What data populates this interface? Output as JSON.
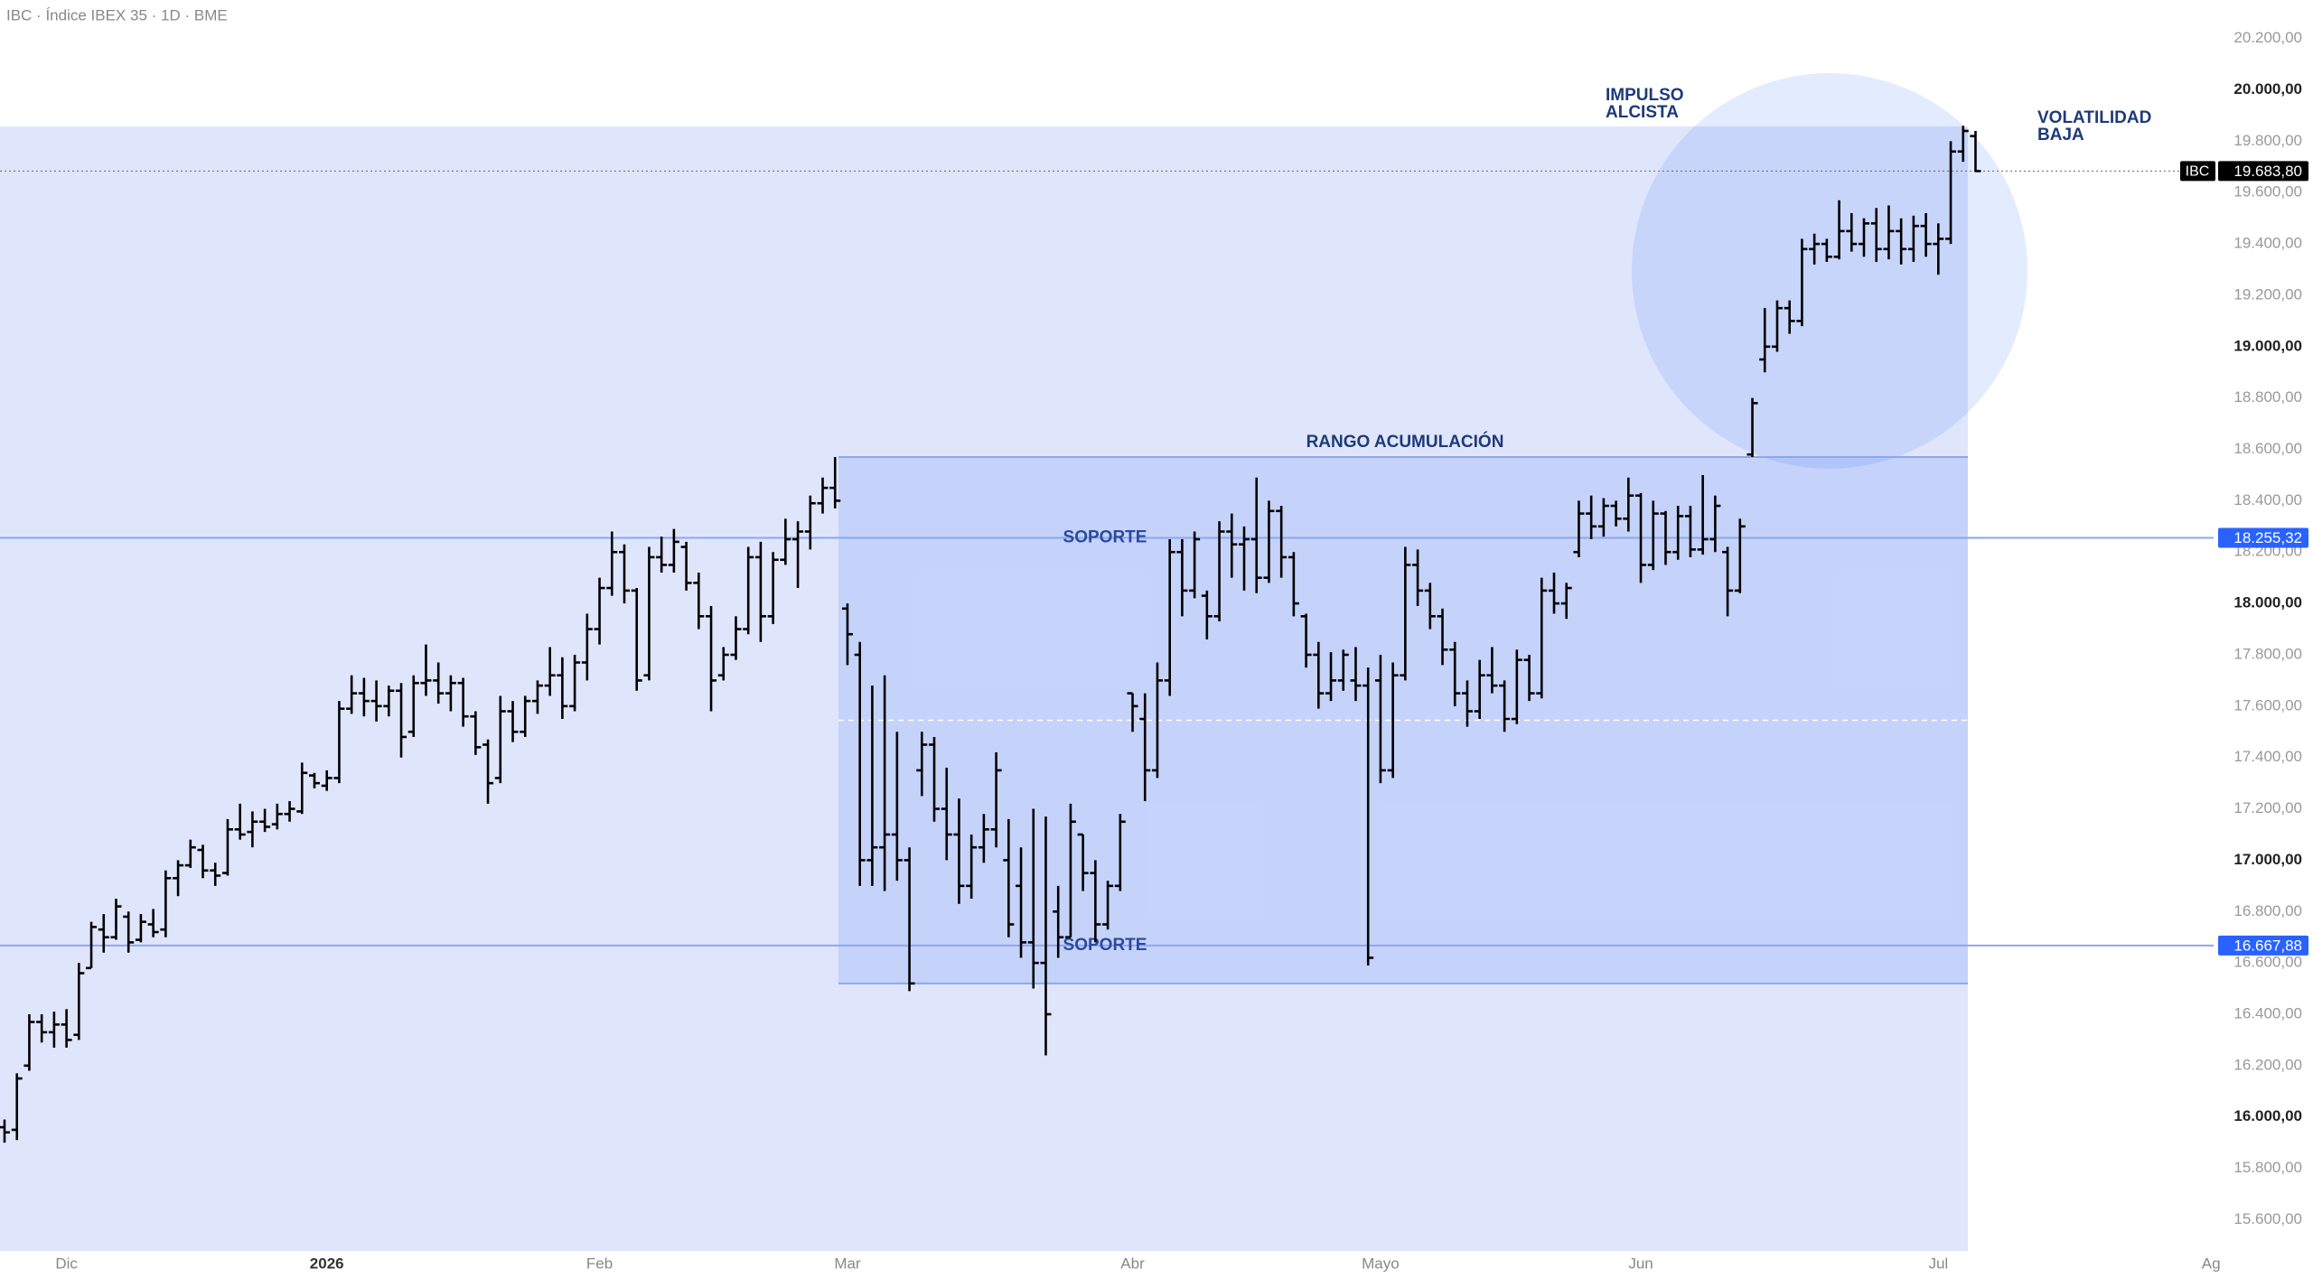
{
  "chart_data": {
    "type": "ohlc",
    "title": "IBC · Índice IBEX 35 · 1D · BME",
    "categories": [
      null,
      null,
      null,
      null,
      null,
      "Dic",
      null,
      null,
      null,
      null,
      null,
      null,
      null,
      null,
      null,
      null,
      null,
      null,
      null,
      null,
      null,
      null,
      null,
      null,
      null,
      null,
      "2026",
      null,
      null,
      null,
      null,
      null,
      null,
      null,
      null,
      null,
      null,
      null,
      null,
      null,
      null,
      null,
      null,
      null,
      null,
      null,
      null,
      null,
      "Feb",
      null,
      null,
      null,
      null,
      null,
      null,
      null,
      null,
      null,
      null,
      null,
      null,
      null,
      null,
      null,
      null,
      null,
      null,
      null,
      "Mar",
      null,
      null,
      null,
      null,
      null,
      null,
      null,
      null,
      null,
      null,
      null,
      null,
      null,
      null,
      null,
      null,
      null,
      null,
      null,
      null,
      null,
      null,
      "Abr",
      null,
      null,
      null,
      null,
      null,
      null,
      null,
      null,
      null,
      null,
      null,
      null,
      null,
      null,
      null,
      null,
      null,
      null,
      null,
      "Mayo",
      null,
      null,
      null,
      null,
      null,
      null,
      null,
      null,
      null,
      null,
      null,
      null,
      null,
      null,
      null,
      null,
      null,
      null,
      null,
      null,
      "Jun",
      null,
      null,
      null,
      null,
      null,
      null,
      null,
      null,
      null,
      null,
      null,
      null,
      null,
      null,
      null,
      null,
      null,
      null,
      null,
      null,
      null,
      null,
      null,
      "Jul",
      null,
      null,
      null,
      null,
      null,
      null,
      null,
      null,
      null,
      null,
      null,
      null,
      null,
      null,
      null,
      null,
      null,
      null,
      null,
      null,
      null,
      "Ag"
    ],
    "series": [
      {
        "name": "IBC",
        "color": "#000000",
        "open": [
          15960,
          15950,
          16200,
          16370,
          16330,
          16360,
          16320,
          16580,
          16730,
          16700,
          16780,
          16690,
          16750,
          16730,
          16930,
          16980,
          17040,
          16960,
          16950,
          17120,
          17110,
          17150,
          17140,
          17180,
          17190,
          17330,
          17290,
          17320,
          17590,
          17650,
          17620,
          17600,
          17660,
          17500,
          17690,
          17700,
          17650,
          17690,
          17560,
          17450,
          17320,
          17580,
          17500,
          17620,
          17680,
          17720,
          17600,
          17770,
          17900,
          18060,
          18200,
          18050,
          17720,
          18180,
          18150,
          18220,
          18080,
          17950,
          17720,
          17800,
          17900,
          18180,
          17950,
          18170,
          18250,
          18280,
          18390,
          18450,
          17980,
          17800,
          17000,
          17050,
          17100,
          17000,
          17350,
          17450,
          17200,
          17100,
          16900,
          17050,
          17120,
          17000,
          16900,
          16680,
          16600,
          16800,
          16700,
          17100,
          16950,
          16750,
          16900,
          17650,
          17550,
          17350,
          17700,
          18200,
          18050,
          18030,
          17950,
          18280,
          18230,
          18250,
          18100,
          18360,
          18180,
          17950,
          17800,
          17650,
          17700,
          17700,
          17680,
          17700,
          17350,
          17720,
          18150,
          18050,
          17950,
          17820,
          17650,
          17580,
          17720,
          17680,
          17550,
          17780,
          17650,
          18050,
          18000,
          18200,
          18350,
          18300,
          18380,
          18330,
          18420,
          18150,
          18350,
          18200,
          18340,
          18210,
          18250,
          18200,
          18050,
          18580,
          18950,
          19000,
          19150,
          19100,
          19380,
          19400,
          19350,
          19450,
          19400,
          19480,
          19380,
          19450,
          19380,
          19470,
          19400,
          19420,
          19760,
          19820,
          null,
          null,
          null,
          null,
          null,
          null,
          null,
          null,
          null,
          null,
          null,
          null,
          null,
          null,
          null,
          null,
          null,
          null,
          null
        ],
        "high": [
          15990,
          16170,
          16400,
          16400,
          16410,
          16420,
          16600,
          16760,
          16790,
          16850,
          16800,
          16790,
          16810,
          16960,
          17000,
          17080,
          17060,
          16990,
          17160,
          17220,
          17190,
          17200,
          17220,
          17230,
          17380,
          17340,
          17350,
          17620,
          17720,
          17710,
          17700,
          17680,
          17690,
          17720,
          17840,
          17770,
          17720,
          17710,
          17580,
          17470,
          17640,
          17620,
          17640,
          17700,
          17830,
          17790,
          17800,
          17960,
          18100,
          18280,
          18230,
          18060,
          18220,
          18260,
          18290,
          18240,
          18120,
          17990,
          17830,
          17950,
          18220,
          18240,
          18200,
          18330,
          18320,
          18420,
          18490,
          18570,
          18000,
          17850,
          17680,
          17720,
          17500,
          17050,
          17500,
          17480,
          17360,
          17240,
          17100,
          17180,
          17420,
          17160,
          17050,
          17200,
          17170,
          16900,
          17220,
          17100,
          17000,
          16920,
          17180,
          17650,
          17650,
          17770,
          18250,
          18250,
          18280,
          18050,
          18320,
          18350,
          18300,
          18490,
          18400,
          18380,
          18200,
          17960,
          17850,
          17810,
          17820,
          17830,
          17750,
          17800,
          17770,
          18220,
          18210,
          18080,
          17980,
          17850,
          17700,
          17780,
          17830,
          17700,
          17820,
          17800,
          18100,
          18120,
          18080,
          18400,
          18420,
          18410,
          18400,
          18490,
          18430,
          18400,
          18360,
          18380,
          18380,
          18500,
          18420,
          18220,
          18330,
          18800,
          19150,
          19180,
          19180,
          19420,
          19440,
          19420,
          19570,
          19520,
          19500,
          19540,
          19550,
          19500,
          19510,
          19520,
          19480,
          19800,
          19860,
          19840,
          null,
          null,
          null,
          null,
          null,
          null,
          null,
          null,
          null,
          null,
          null,
          null,
          null,
          null,
          null,
          null,
          null,
          null,
          null
        ],
        "low": [
          15900,
          15910,
          16180,
          16290,
          16270,
          16270,
          16300,
          16580,
          16640,
          16690,
          16640,
          16680,
          16700,
          16700,
          16860,
          16970,
          16930,
          16900,
          16940,
          17080,
          17050,
          17110,
          17120,
          17150,
          17180,
          17280,
          17270,
          17300,
          17570,
          17560,
          17540,
          17560,
          17400,
          17480,
          17640,
          17610,
          17580,
          17520,
          17410,
          17220,
          17300,
          17460,
          17480,
          17570,
          17640,
          17550,
          17580,
          17700,
          17840,
          18030,
          18000,
          17660,
          17700,
          18120,
          18120,
          18050,
          17900,
          17580,
          17700,
          17780,
          17880,
          17850,
          17920,
          18150,
          18060,
          18210,
          18350,
          18370,
          17760,
          16900,
          16900,
          16880,
          16920,
          16490,
          17250,
          17150,
          17000,
          16830,
          16850,
          16990,
          17050,
          16700,
          16620,
          16500,
          16240,
          16620,
          16700,
          16880,
          16680,
          16730,
          16880,
          17500,
          17230,
          17320,
          17640,
          17950,
          18020,
          17860,
          17930,
          18100,
          18050,
          18040,
          18080,
          18100,
          17950,
          17750,
          17590,
          17620,
          17660,
          17620,
          16590,
          17300,
          17320,
          17700,
          17990,
          17900,
          17760,
          17600,
          17520,
          17550,
          17650,
          17500,
          17530,
          17620,
          17630,
          17960,
          17940,
          18180,
          18250,
          18260,
          18300,
          18280,
          18080,
          18130,
          18150,
          18170,
          18180,
          18190,
          18200,
          17950,
          18040,
          18570,
          18900,
          18980,
          19050,
          19080,
          19320,
          19330,
          19340,
          19370,
          19350,
          19330,
          19340,
          19320,
          19330,
          19350,
          19280,
          19400,
          19720,
          19680,
          null,
          null,
          null,
          null,
          null,
          null,
          null,
          null,
          null,
          null,
          null,
          null,
          null,
          null,
          null,
          null,
          null,
          null,
          null
        ],
        "close": [
          15940,
          16150,
          16370,
          16330,
          16360,
          16300,
          16560,
          16740,
          16700,
          16820,
          16680,
          16760,
          16720,
          16930,
          16980,
          17050,
          16960,
          16940,
          17120,
          17100,
          17150,
          17130,
          17180,
          17200,
          17340,
          17300,
          17320,
          17590,
          17650,
          17620,
          17600,
          17660,
          17480,
          17690,
          17700,
          17650,
          17690,
          17560,
          17440,
          17300,
          17580,
          17500,
          17620,
          17680,
          17720,
          17600,
          17770,
          17900,
          18060,
          18200,
          18050,
          17700,
          18180,
          18150,
          18240,
          18080,
          17950,
          17700,
          17800,
          17900,
          18180,
          17950,
          18170,
          18250,
          18280,
          18390,
          18450,
          18400,
          17880,
          17000,
          17050,
          17100,
          17000,
          16520,
          17450,
          17200,
          17100,
          16900,
          17050,
          17120,
          17350,
          16750,
          16680,
          16600,
          16400,
          16700,
          17150,
          16950,
          16750,
          16900,
          17150,
          17600,
          17350,
          17700,
          18200,
          18050,
          18250,
          17950,
          18280,
          18230,
          18250,
          18100,
          18360,
          18180,
          18000,
          17800,
          17650,
          17700,
          17800,
          17680,
          16620,
          17350,
          17720,
          18150,
          18050,
          17950,
          17820,
          17650,
          17580,
          17720,
          17680,
          17550,
          17780,
          17650,
          18050,
          18000,
          18060,
          18350,
          18300,
          18380,
          18330,
          18420,
          18150,
          18350,
          18200,
          18340,
          18210,
          18250,
          18380,
          18050,
          18300,
          18780,
          19000,
          19150,
          19100,
          19380,
          19400,
          19350,
          19450,
          19400,
          19480,
          19380,
          19450,
          19380,
          19470,
          19400,
          19420,
          19760,
          19840,
          19683.8,
          null,
          null,
          null,
          null,
          null,
          null,
          null,
          null,
          null,
          null,
          null,
          null,
          null,
          null,
          null,
          null,
          null,
          null,
          null
        ]
      }
    ],
    "ylim": [
      15496,
      20350
    ],
    "yticks": [
      {
        "value": 15600,
        "label": "15.600,00"
      },
      {
        "value": 15800,
        "label": "15.800,00"
      },
      {
        "value": 16000,
        "label": "16.000,00"
      },
      {
        "value": 16200,
        "label": "16.200,00"
      },
      {
        "value": 16400,
        "label": "16.400,00"
      },
      {
        "value": 16600,
        "label": "16.600,00"
      },
      {
        "value": 16800,
        "label": "16.800,00"
      },
      {
        "value": 17000,
        "label": "17.000,00"
      },
      {
        "value": 17200,
        "label": "17.200,00"
      },
      {
        "value": 17400,
        "label": "17.400,00"
      },
      {
        "value": 17600,
        "label": "17.600,00"
      },
      {
        "value": 17800,
        "label": "17.800,00"
      },
      {
        "value": 18000,
        "label": "18.000,00"
      },
      {
        "value": 18200,
        "label": "18.200,00"
      },
      {
        "value": 18400,
        "label": "18.400,00"
      },
      {
        "value": 18600,
        "label": "18.600,00"
      },
      {
        "value": 18800,
        "label": "18.800,00"
      },
      {
        "value": 19000,
        "label": "19.000,00"
      },
      {
        "value": 19200,
        "label": "19.200,00"
      },
      {
        "value": 19400,
        "label": "19.400,00"
      },
      {
        "value": 19600,
        "label": "19.600,00"
      },
      {
        "value": 19800,
        "label": "19.800,00"
      },
      {
        "value": 20000,
        "label": "20.000,00"
      },
      {
        "value": 20200,
        "label": "20.200,00"
      }
    ],
    "last_price": {
      "value": 19683.8,
      "label": "19.683,80"
    },
    "levels": [
      {
        "value": 18255.32,
        "label": "18.255,32",
        "name": "SOPORTE"
      },
      {
        "value": 16667.88,
        "label": "16.667,88",
        "name": "SOPORTE"
      }
    ],
    "range_zone": {
      "label": "RANGO ACUMULACIÓN",
      "high": 18570,
      "low": 16520
    },
    "annotations": [
      "IMPULSO\nALCISTA",
      "VOLATILIDAD\nBAJA"
    ]
  }
}
